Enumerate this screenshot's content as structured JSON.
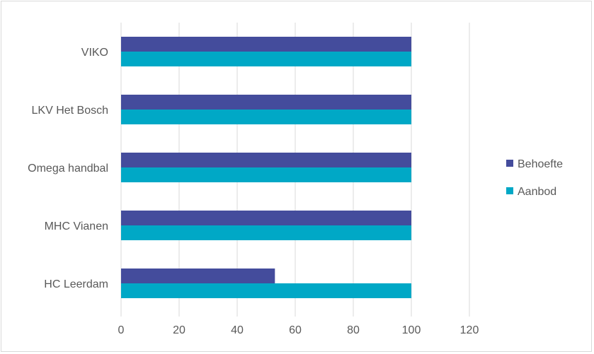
{
  "chart_data": {
    "type": "bar",
    "orientation": "horizontal",
    "categories": [
      "VIKO",
      "LKV Het Bosch",
      "Omega handbal",
      "MHC Vianen",
      "HC Leerdam"
    ],
    "series": [
      {
        "name": "Behoefte",
        "color": "#444C9C",
        "values": [
          100,
          100,
          100,
          100,
          53
        ]
      },
      {
        "name": "Aanbod",
        "color": "#00A8C6",
        "values": [
          100,
          100,
          100,
          100,
          100
        ]
      }
    ],
    "xlim": [
      0,
      120
    ],
    "xticks": [
      0,
      20,
      40,
      60,
      80,
      100,
      120
    ],
    "grid": true,
    "legend": "right"
  }
}
